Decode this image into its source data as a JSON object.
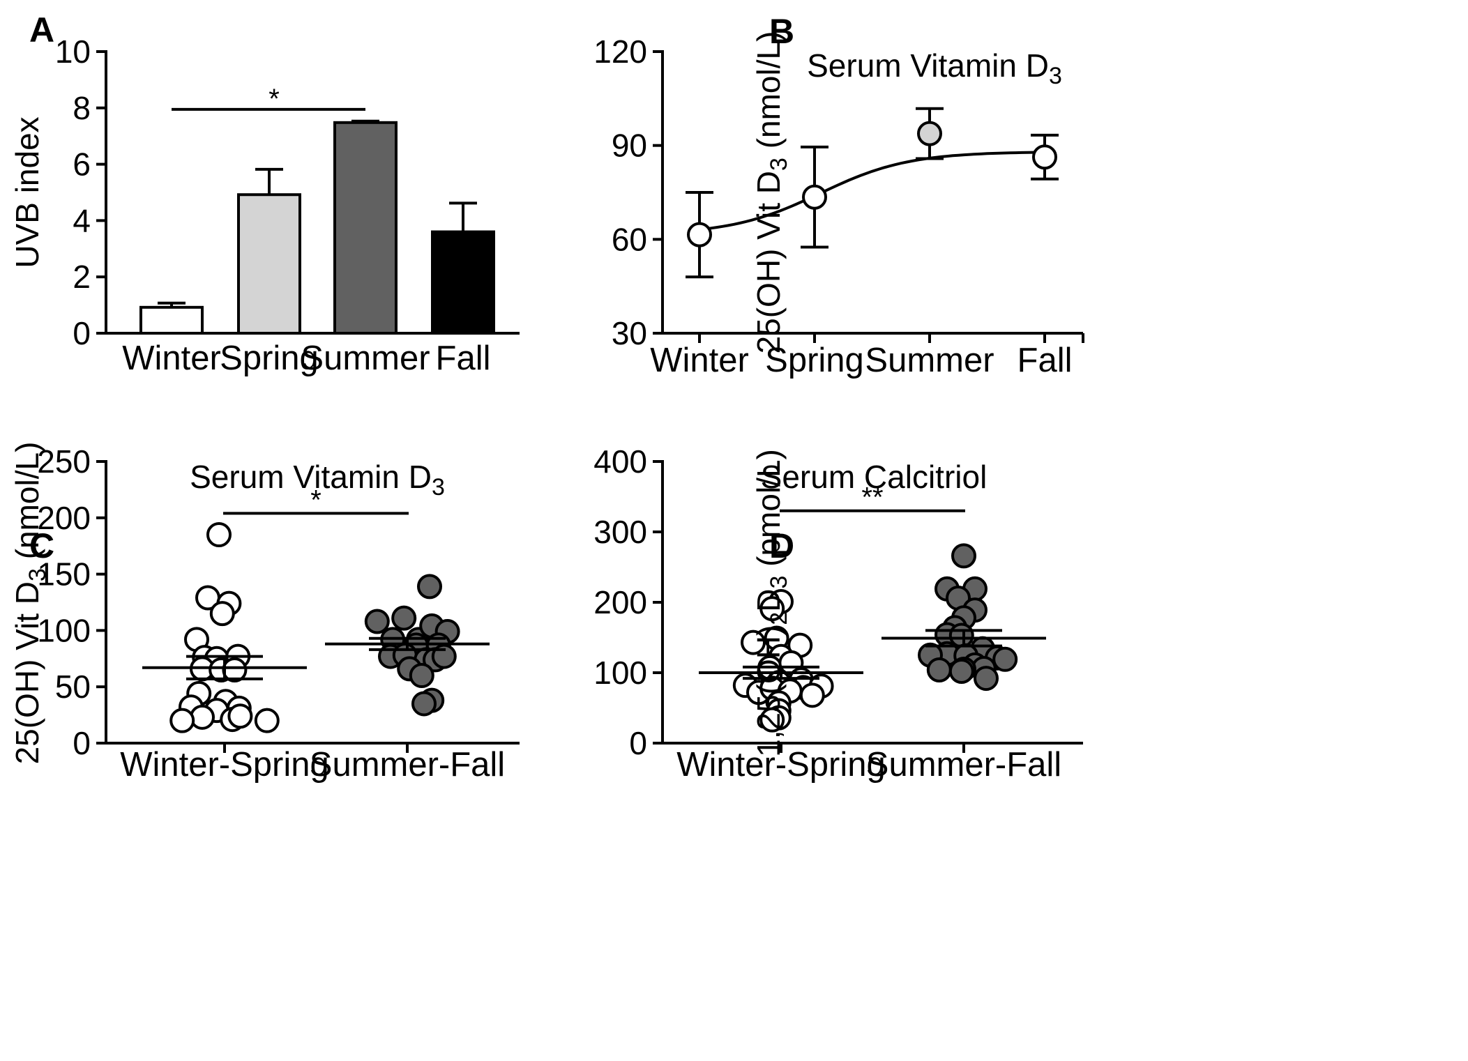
{
  "chart_data": [
    {
      "panel": "A",
      "type": "bar",
      "title": "",
      "xlabel": "",
      "ylabel": "UVB index",
      "ylim": [
        0,
        10
      ],
      "yticks": [
        "0",
        "2",
        "4",
        "6",
        "8",
        "10"
      ],
      "categories": [
        "Winter",
        "Spring",
        "Summer",
        "Fall"
      ],
      "values": [
        0.92,
        4.92,
        7.48,
        3.6
      ],
      "errors": [
        0.15,
        0.9,
        0.05,
        1.02
      ],
      "bar_colors": [
        "#ffffff",
        "#d4d4d4",
        "#616161",
        "#000000"
      ],
      "significance": [
        {
          "from": 0,
          "to": 2,
          "label": "*",
          "y": 7.95
        }
      ]
    },
    {
      "panel": "B",
      "type": "line",
      "title": "Serum Vitamin D",
      "title_sub": "3",
      "xlabel": "",
      "ylabel": "25(OH) Vit D",
      "ylabel_sub": "3",
      "ylabel_suffix": " (nmol/L)",
      "ylim": [
        30,
        120
      ],
      "yticks": [
        "30",
        "60",
        "90",
        "120"
      ],
      "categories": [
        "Winter",
        "Spring",
        "Summer",
        "Fall"
      ],
      "values": [
        61.5,
        73.5,
        93.8,
        86.3
      ],
      "errors": [
        13.5,
        16,
        8,
        7
      ],
      "marker_fill": [
        "#ffffff",
        "#ffffff",
        "#d4d4d4",
        "#ffffff"
      ],
      "fit": "sigmoid"
    },
    {
      "panel": "C",
      "type": "scatter",
      "title": "Serum Vitamin D",
      "title_sub": "3",
      "ylabel": "25(OH) Vit D",
      "ylabel_sub": "3",
      "ylabel_suffix": " (nmol/L)",
      "ylim": [
        0,
        250
      ],
      "yticks": [
        "0",
        "50",
        "100",
        "150",
        "200",
        "250"
      ],
      "categories": [
        "Winter-Spring",
        "Summer-Fall"
      ],
      "series": [
        {
          "name": "Winter-Spring",
          "fill": "#ffffff",
          "mean": 67,
          "sem": 10,
          "points": [
            [
              -0.05,
              185
            ],
            [
              -0.15,
              129
            ],
            [
              0.04,
              124
            ],
            [
              -0.02,
              115
            ],
            [
              -0.25,
              92
            ],
            [
              -0.18,
              76
            ],
            [
              -0.07,
              75
            ],
            [
              0.12,
              77
            ],
            [
              -0.2,
              66
            ],
            [
              -0.03,
              65
            ],
            [
              0.09,
              65
            ],
            [
              -0.23,
              44
            ],
            [
              0.01,
              37
            ],
            [
              0.13,
              31
            ],
            [
              -0.3,
              32
            ],
            [
              -0.07,
              29
            ],
            [
              -0.2,
              23
            ],
            [
              -0.38,
              20
            ],
            [
              0.07,
              21
            ],
            [
              0.14,
              24
            ],
            [
              0.38,
              20
            ]
          ]
        },
        {
          "name": "Summer-Fall",
          "fill": "#616161",
          "mean": 88,
          "sem": 5,
          "points": [
            [
              0.2,
              139
            ],
            [
              -0.27,
              108
            ],
            [
              -0.03,
              111
            ],
            [
              0.1,
              92
            ],
            [
              0.22,
              104
            ],
            [
              0.36,
              99
            ],
            [
              -0.13,
              92
            ],
            [
              0.08,
              87
            ],
            [
              0.28,
              87
            ],
            [
              -0.15,
              77
            ],
            [
              -0.02,
              78
            ],
            [
              0.17,
              74
            ],
            [
              0.25,
              74
            ],
            [
              0.33,
              77
            ],
            [
              0.02,
              66
            ],
            [
              0.13,
              60
            ],
            [
              0.22,
              38
            ],
            [
              0.15,
              35
            ]
          ]
        }
      ],
      "significance": [
        {
          "from": 0,
          "to": 1,
          "label": "*",
          "y": 204
        }
      ]
    },
    {
      "panel": "D",
      "type": "scatter",
      "title": "Serum Calcitriol",
      "ylabel": "1,25(OH)",
      "ylabel_sub": "2",
      "ylabel_mid": "D",
      "ylabel_sub2": "3",
      "ylabel_suffix": " (pmol/L)",
      "ylim": [
        0,
        400
      ],
      "yticks": [
        "0",
        "100",
        "200",
        "300",
        "400"
      ],
      "categories": [
        "Winter-Spring",
        "Summer-Fall"
      ],
      "series": [
        {
          "name": "Winter-Spring",
          "fill": "#ffffff",
          "mean": 100,
          "sem": 8,
          "points": [
            [
              0,
              201
            ],
            [
              -0.08,
              191
            ],
            [
              -0.04,
              149
            ],
            [
              0.17,
              139
            ],
            [
              -0.25,
              143
            ],
            [
              0,
              123
            ],
            [
              -0.1,
              107
            ],
            [
              0.09,
              114
            ],
            [
              0.18,
              90
            ],
            [
              0.2,
              79
            ],
            [
              -0.02,
              86
            ],
            [
              0.36,
              81
            ],
            [
              -0.32,
              82
            ],
            [
              -0.2,
              72
            ],
            [
              -0.08,
              78
            ],
            [
              0.08,
              74
            ],
            [
              0.28,
              68
            ],
            [
              -0.02,
              57
            ],
            [
              -0.02,
              46
            ],
            [
              -0.02,
              36
            ],
            [
              -0.08,
              33
            ]
          ]
        },
        {
          "name": "Summer-Fall",
          "fill": "#616161",
          "mean": 149,
          "sem": 11,
          "points": [
            [
              0,
              266
            ],
            [
              -0.15,
              219
            ],
            [
              0.1,
              219
            ],
            [
              -0.05,
              206
            ],
            [
              0.1,
              189
            ],
            [
              0,
              178
            ],
            [
              -0.08,
              164
            ],
            [
              -0.15,
              154
            ],
            [
              -0.02,
              153
            ],
            [
              0.17,
              134
            ],
            [
              -0.15,
              127
            ],
            [
              -0.3,
              125
            ],
            [
              0.02,
              124
            ],
            [
              0.3,
              121
            ],
            [
              0.37,
              119
            ],
            [
              0.1,
              111
            ],
            [
              -0.22,
              104
            ],
            [
              0.18,
              106
            ],
            [
              0,
              105
            ],
            [
              -0.02,
              102
            ],
            [
              0.2,
              92
            ]
          ]
        }
      ],
      "significance": [
        {
          "from": 0,
          "to": 1,
          "label": "**",
          "y": 330
        }
      ]
    }
  ]
}
